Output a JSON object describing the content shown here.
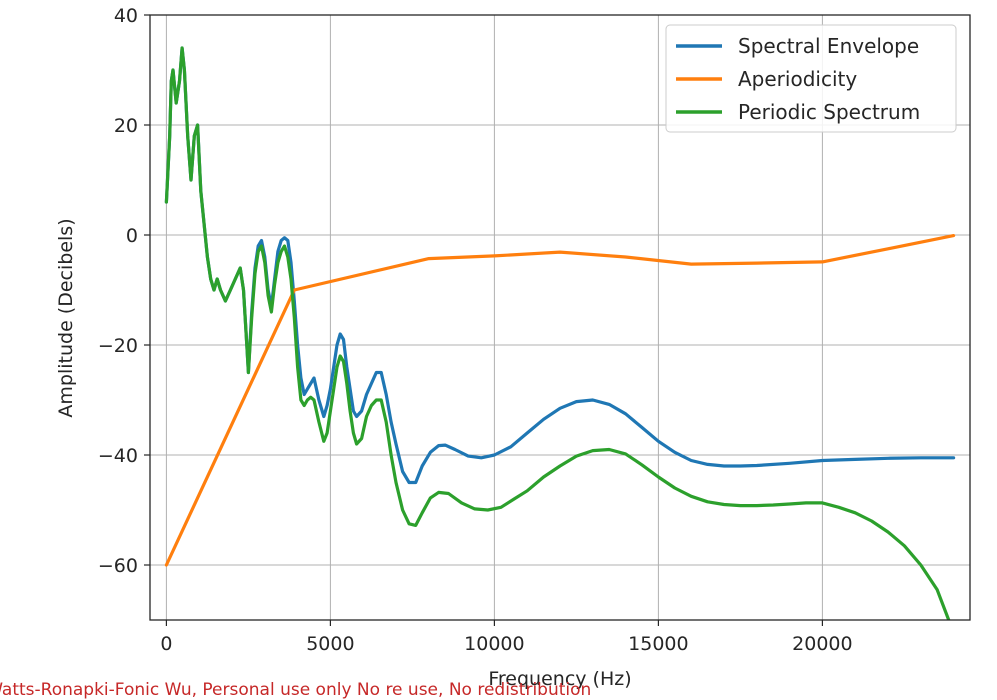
{
  "chart_data": {
    "type": "line",
    "xlabel": "Frequency (Hz)",
    "ylabel": "Amplitude (Decibels)",
    "xlim": [
      -500,
      24500
    ],
    "ylim": [
      -70,
      40
    ],
    "grid": true,
    "legend_position": "top-right",
    "xticks": [
      0,
      5000,
      10000,
      15000,
      20000
    ],
    "xtick_labels": [
      "0",
      "5000",
      "10000",
      "15000",
      "20000"
    ],
    "yticks": [
      40,
      20,
      0,
      -20,
      -40,
      -60
    ],
    "ytick_labels": [
      "40",
      "20",
      "0",
      "−20",
      "−40",
      "−60"
    ],
    "series": [
      {
        "name": "Spectral Envelope",
        "color": "#1f77b4",
        "points": [
          [
            0,
            6
          ],
          [
            100,
            18
          ],
          [
            150,
            28
          ],
          [
            200,
            30
          ],
          [
            300,
            24
          ],
          [
            400,
            28
          ],
          [
            480,
            34
          ],
          [
            550,
            30
          ],
          [
            650,
            18
          ],
          [
            750,
            10
          ],
          [
            850,
            18
          ],
          [
            950,
            20
          ],
          [
            1050,
            8
          ],
          [
            1150,
            2
          ],
          [
            1250,
            -4
          ],
          [
            1350,
            -8
          ],
          [
            1450,
            -10
          ],
          [
            1550,
            -8
          ],
          [
            1650,
            -10
          ],
          [
            1800,
            -12
          ],
          [
            1950,
            -10
          ],
          [
            2100,
            -8
          ],
          [
            2250,
            -6
          ],
          [
            2350,
            -10
          ],
          [
            2450,
            -20
          ],
          [
            2500,
            -25
          ],
          [
            2600,
            -14
          ],
          [
            2700,
            -6
          ],
          [
            2800,
            -2
          ],
          [
            2900,
            -1
          ],
          [
            3000,
            -4
          ],
          [
            3100,
            -10
          ],
          [
            3200,
            -13
          ],
          [
            3300,
            -8
          ],
          [
            3400,
            -3
          ],
          [
            3500,
            -1
          ],
          [
            3600,
            -0.5
          ],
          [
            3700,
            -1
          ],
          [
            3800,
            -5
          ],
          [
            3900,
            -12
          ],
          [
            4000,
            -20
          ],
          [
            4100,
            -26
          ],
          [
            4200,
            -29
          ],
          [
            4300,
            -28
          ],
          [
            4400,
            -27
          ],
          [
            4500,
            -26
          ],
          [
            4650,
            -30
          ],
          [
            4800,
            -33
          ],
          [
            4900,
            -31
          ],
          [
            5000,
            -28
          ],
          [
            5100,
            -24
          ],
          [
            5200,
            -20
          ],
          [
            5300,
            -18
          ],
          [
            5400,
            -19
          ],
          [
            5500,
            -24
          ],
          [
            5600,
            -28
          ],
          [
            5700,
            -32
          ],
          [
            5800,
            -33
          ],
          [
            5950,
            -32
          ],
          [
            6100,
            -29
          ],
          [
            6250,
            -27
          ],
          [
            6400,
            -25
          ],
          [
            6550,
            -25
          ],
          [
            6700,
            -29
          ],
          [
            6850,
            -34
          ],
          [
            7000,
            -38
          ],
          [
            7200,
            -43
          ],
          [
            7400,
            -45
          ],
          [
            7600,
            -45
          ],
          [
            7800,
            -42
          ],
          [
            8050,
            -39.5
          ],
          [
            8300,
            -38.3
          ],
          [
            8500,
            -38.2
          ],
          [
            8800,
            -39
          ],
          [
            9200,
            -40.2
          ],
          [
            9600,
            -40.5
          ],
          [
            10000,
            -40
          ],
          [
            10500,
            -38.5
          ],
          [
            11000,
            -36
          ],
          [
            11500,
            -33.5
          ],
          [
            12000,
            -31.5
          ],
          [
            12500,
            -30.3
          ],
          [
            13000,
            -30
          ],
          [
            13500,
            -30.8
          ],
          [
            14000,
            -32.5
          ],
          [
            14500,
            -35
          ],
          [
            15000,
            -37.5
          ],
          [
            15500,
            -39.5
          ],
          [
            16000,
            -41
          ],
          [
            16500,
            -41.7
          ],
          [
            17000,
            -42
          ],
          [
            17500,
            -42
          ],
          [
            18000,
            -41.9
          ],
          [
            19000,
            -41.5
          ],
          [
            20000,
            -41
          ],
          [
            21000,
            -40.8
          ],
          [
            22000,
            -40.6
          ],
          [
            23000,
            -40.5
          ],
          [
            24000,
            -40.5
          ]
        ]
      },
      {
        "name": "Aperiodicity",
        "color": "#ff7f0e",
        "points": [
          [
            0,
            -60
          ],
          [
            3900,
            -10
          ],
          [
            8000,
            -4.3
          ],
          [
            10000,
            -3.8
          ],
          [
            12000,
            -3.1
          ],
          [
            14000,
            -4
          ],
          [
            16000,
            -5.3
          ],
          [
            18000,
            -5.1
          ],
          [
            20000,
            -4.9
          ],
          [
            22000,
            -2.5
          ],
          [
            24000,
            -0.1
          ]
        ]
      },
      {
        "name": "Periodic Spectrum",
        "color": "#2ca02c",
        "points": [
          [
            0,
            6
          ],
          [
            100,
            18
          ],
          [
            150,
            28
          ],
          [
            200,
            30
          ],
          [
            300,
            24
          ],
          [
            400,
            28
          ],
          [
            480,
            34
          ],
          [
            550,
            30
          ],
          [
            650,
            18
          ],
          [
            750,
            10
          ],
          [
            850,
            18
          ],
          [
            950,
            20
          ],
          [
            1050,
            8
          ],
          [
            1150,
            2
          ],
          [
            1250,
            -4
          ],
          [
            1350,
            -8
          ],
          [
            1450,
            -10
          ],
          [
            1550,
            -8
          ],
          [
            1650,
            -10
          ],
          [
            1800,
            -12
          ],
          [
            1950,
            -10
          ],
          [
            2100,
            -8
          ],
          [
            2250,
            -6
          ],
          [
            2350,
            -10
          ],
          [
            2450,
            -20
          ],
          [
            2500,
            -25
          ],
          [
            2600,
            -15
          ],
          [
            2700,
            -7
          ],
          [
            2800,
            -3
          ],
          [
            2900,
            -2
          ],
          [
            3000,
            -5
          ],
          [
            3100,
            -11
          ],
          [
            3200,
            -14
          ],
          [
            3300,
            -9
          ],
          [
            3400,
            -5
          ],
          [
            3500,
            -3
          ],
          [
            3600,
            -2
          ],
          [
            3700,
            -4
          ],
          [
            3800,
            -8
          ],
          [
            3900,
            -15
          ],
          [
            4000,
            -24
          ],
          [
            4100,
            -30
          ],
          [
            4200,
            -31
          ],
          [
            4300,
            -30
          ],
          [
            4400,
            -29.5
          ],
          [
            4500,
            -30
          ],
          [
            4650,
            -34
          ],
          [
            4800,
            -37.5
          ],
          [
            4900,
            -36
          ],
          [
            5000,
            -32
          ],
          [
            5100,
            -28
          ],
          [
            5200,
            -24
          ],
          [
            5300,
            -22
          ],
          [
            5400,
            -23
          ],
          [
            5500,
            -27
          ],
          [
            5600,
            -32
          ],
          [
            5700,
            -36
          ],
          [
            5800,
            -38
          ],
          [
            5950,
            -37
          ],
          [
            6100,
            -33
          ],
          [
            6250,
            -31
          ],
          [
            6400,
            -30
          ],
          [
            6550,
            -30
          ],
          [
            6700,
            -34
          ],
          [
            6850,
            -40
          ],
          [
            7000,
            -45
          ],
          [
            7200,
            -50
          ],
          [
            7400,
            -52.5
          ],
          [
            7600,
            -52.8
          ],
          [
            7800,
            -50.5
          ],
          [
            8050,
            -47.8
          ],
          [
            8300,
            -46.8
          ],
          [
            8600,
            -47
          ],
          [
            9000,
            -48.7
          ],
          [
            9400,
            -49.8
          ],
          [
            9800,
            -50
          ],
          [
            10200,
            -49.5
          ],
          [
            10600,
            -48
          ],
          [
            11000,
            -46.5
          ],
          [
            11500,
            -44
          ],
          [
            12000,
            -42
          ],
          [
            12500,
            -40.2
          ],
          [
            13000,
            -39.2
          ],
          [
            13500,
            -39
          ],
          [
            14000,
            -39.8
          ],
          [
            14500,
            -41.8
          ],
          [
            15000,
            -44
          ],
          [
            15500,
            -46
          ],
          [
            16000,
            -47.5
          ],
          [
            16500,
            -48.5
          ],
          [
            17000,
            -49
          ],
          [
            17500,
            -49.2
          ],
          [
            18000,
            -49.2
          ],
          [
            18500,
            -49.1
          ],
          [
            19000,
            -48.9
          ],
          [
            19500,
            -48.7
          ],
          [
            20000,
            -48.7
          ],
          [
            20500,
            -49.5
          ],
          [
            21000,
            -50.5
          ],
          [
            21500,
            -52
          ],
          [
            22000,
            -54
          ],
          [
            22500,
            -56.5
          ],
          [
            23000,
            -60
          ],
          [
            23500,
            -64.5
          ],
          [
            23850,
            -70
          ]
        ]
      }
    ]
  },
  "watermark": "g Watts-Ronapki-Fonic Wu, Personal use only No re use, No redistribution"
}
